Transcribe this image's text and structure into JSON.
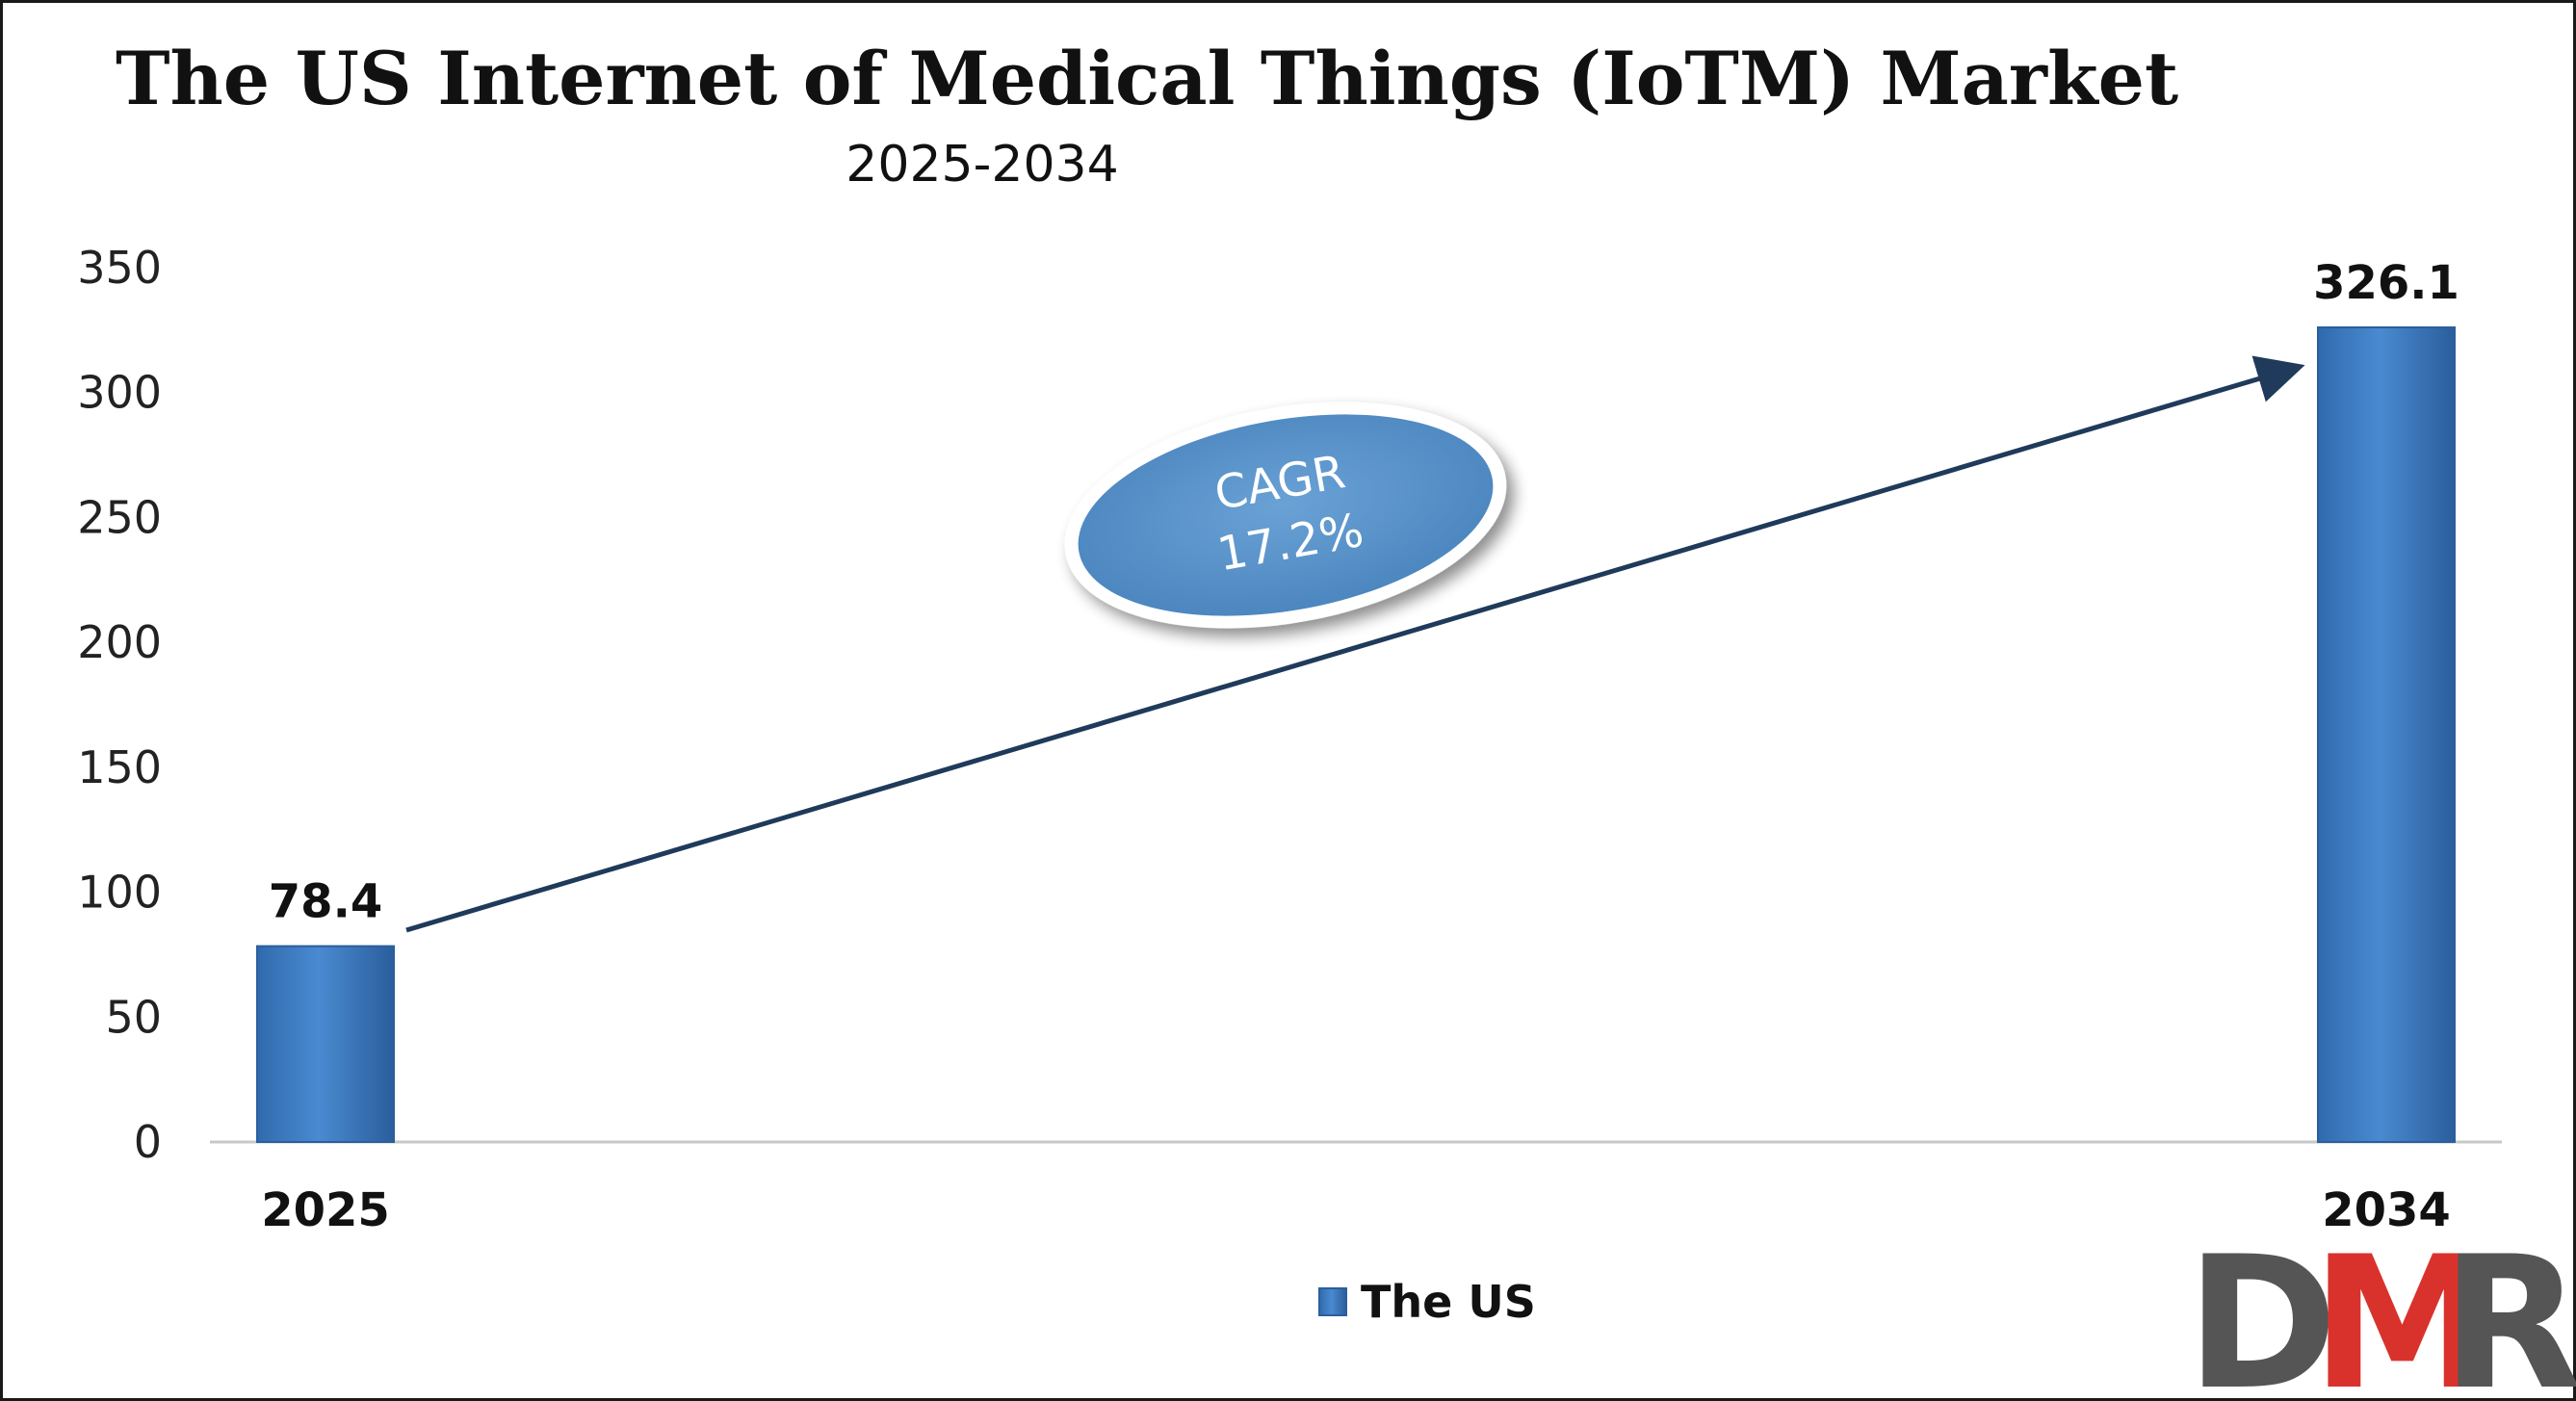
{
  "chart_data": {
    "type": "bar",
    "title": "The US Internet of Medical Things (IoTM) Market",
    "subtitle": "2025-2034",
    "categories": [
      "2025",
      "2034"
    ],
    "series": [
      {
        "name": "The US",
        "values": [
          78.4,
          326.1
        ],
        "labels": [
          "78.4",
          "326.1"
        ],
        "color": "#3d7ec4"
      }
    ],
    "ylim": [
      0,
      350
    ],
    "yticks": [
      "0",
      "50",
      "100",
      "150",
      "200",
      "250",
      "300",
      "350"
    ],
    "ytick_values": [
      0,
      50,
      100,
      150,
      200,
      250,
      300,
      350
    ],
    "grid": false,
    "legend": "bottom-center",
    "annotation": {
      "line1": "CAGR",
      "line2": "17.2%"
    }
  },
  "logo": {
    "letter_d": "D",
    "letter_m": "M",
    "letter_r": "R"
  },
  "colors": {
    "bar": "#3d7ec4",
    "arrow": "#1f3a5a",
    "ellipse": "#5a93c8",
    "logo_dark": "#555555",
    "logo_red": "#d9322c"
  }
}
